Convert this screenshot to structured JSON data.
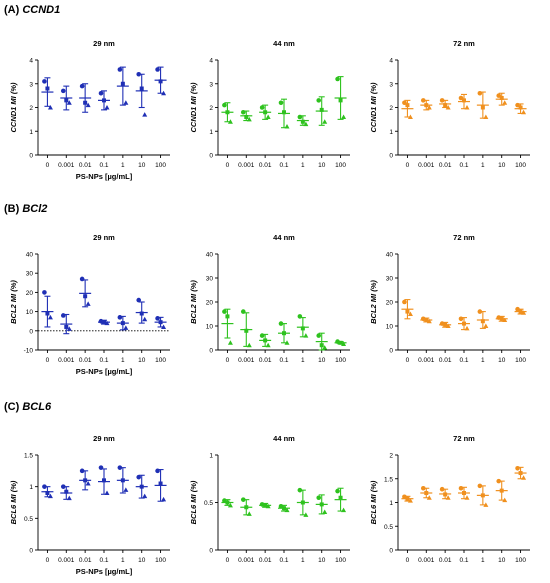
{
  "sections": [
    {
      "letter": "(A)",
      "gene": "CCND1"
    },
    {
      "letter": "(B)",
      "gene": "BCl2"
    },
    {
      "letter": "(C)",
      "gene": "BCL6"
    }
  ],
  "colors": {
    "nm29": "#1f2fb5",
    "nm44": "#2ec21e",
    "nm72": "#f0901e",
    "axis": "#000000"
  },
  "chart_data": [
    {
      "type": "scatter",
      "title": "29 nm",
      "ylabel": "CCND1 MI (%)",
      "xlabel": "PS-NPs [µg/mL]",
      "categories": [
        "0",
        "0.001",
        "0.01",
        "0.1",
        "1",
        "10",
        "100"
      ],
      "ylim": [
        0,
        4
      ],
      "yticks": [
        0,
        1,
        2,
        3,
        4
      ],
      "color": "#1f2fb5",
      "series": [
        {
          "mean": [
            2.65,
            2.4,
            2.4,
            2.3,
            2.9,
            2.7,
            3.15
          ],
          "sd": [
            0.6,
            0.5,
            0.6,
            0.4,
            0.8,
            0.7,
            0.55
          ],
          "points": [
            [
              3.1,
              2.8,
              2.0
            ],
            [
              2.7,
              2.3,
              2.2
            ],
            [
              2.9,
              2.2,
              2.1
            ],
            [
              2.6,
              2.3,
              2.0
            ],
            [
              3.6,
              3.0,
              2.2
            ],
            [
              3.4,
              2.8,
              1.7
            ],
            [
              3.6,
              3.1,
              2.6
            ]
          ]
        }
      ]
    },
    {
      "type": "scatter",
      "title": "44 nm",
      "ylabel": "CCND1 MI (%)",
      "xlabel": "",
      "categories": [
        "0",
        "0.001",
        "0.01",
        "0.1",
        "1",
        "10",
        "100"
      ],
      "ylim": [
        0,
        4
      ],
      "yticks": [
        0,
        1,
        2,
        3,
        4
      ],
      "color": "#2ec21e",
      "series": [
        {
          "mean": [
            1.8,
            1.65,
            1.8,
            1.75,
            1.45,
            1.85,
            2.4
          ],
          "sd": [
            0.4,
            0.2,
            0.3,
            0.6,
            0.2,
            0.6,
            0.9
          ],
          "points": [
            [
              2.1,
              1.8,
              1.4
            ],
            [
              1.8,
              1.6,
              1.5
            ],
            [
              2.0,
              1.8,
              1.6
            ],
            [
              2.2,
              1.8,
              1.2
            ],
            [
              1.6,
              1.4,
              1.3
            ],
            [
              2.3,
              1.9,
              1.4
            ],
            [
              3.2,
              2.3,
              1.6
            ]
          ]
        }
      ]
    },
    {
      "type": "scatter",
      "title": "72 nm",
      "ylabel": "CCND1 MI (%)",
      "xlabel": "",
      "categories": [
        "0",
        "0.001",
        "0.01",
        "0.1",
        "1",
        "10",
        "100"
      ],
      "ylim": [
        0,
        4
      ],
      "yticks": [
        0,
        1,
        2,
        3,
        4
      ],
      "color": "#f0901e",
      "series": [
        {
          "mean": [
            1.95,
            2.1,
            2.15,
            2.25,
            2.1,
            2.35,
            1.95
          ],
          "sd": [
            0.35,
            0.2,
            0.15,
            0.3,
            0.55,
            0.25,
            0.2
          ],
          "points": [
            [
              2.2,
              2.1,
              1.6
            ],
            [
              2.3,
              2.1,
              2.0
            ],
            [
              2.3,
              2.1,
              2.0
            ],
            [
              2.4,
              2.3,
              2.0
            ],
            [
              2.6,
              2.0,
              1.6
            ],
            [
              2.5,
              2.4,
              2.2
            ],
            [
              2.1,
              2.0,
              1.8
            ]
          ]
        }
      ]
    },
    {
      "type": "scatter",
      "title": "29 nm",
      "ylabel": "BCL2 MI (%)",
      "xlabel": "PS-NPs [µg/mL]",
      "categories": [
        "0",
        "0.001",
        "0.01",
        "0.1",
        "1",
        "10",
        "100"
      ],
      "ylim": [
        -10,
        40
      ],
      "yticks": [
        -10,
        0,
        10,
        20,
        30,
        40
      ],
      "color": "#1f2fb5",
      "series": [
        {
          "mean": [
            10,
            3.5,
            19.5,
            4.5,
            4,
            9.5,
            4.5
          ],
          "sd": [
            8,
            5,
            7,
            1,
            3.5,
            5.5,
            2.5
          ],
          "points": [
            [
              20,
              9,
              7
            ],
            [
              8,
              2,
              1
            ],
            [
              27,
              18,
              14
            ],
            [
              5,
              4.5,
              4
            ],
            [
              7,
              4,
              1.5
            ],
            [
              16,
              9,
              6
            ],
            [
              6.5,
              4.5,
              2
            ]
          ]
        }
      ]
    },
    {
      "type": "scatter",
      "title": "44 nm",
      "ylabel": "BCL2 MI (%)",
      "xlabel": "",
      "categories": [
        "0",
        "0.001",
        "0.01",
        "0.1",
        "1",
        "10",
        "100"
      ],
      "ylim": [
        0,
        40
      ],
      "yticks": [
        0,
        10,
        20,
        30,
        40
      ],
      "color": "#2ec21e",
      "series": [
        {
          "mean": [
            11,
            8.5,
            4,
            7,
            9.5,
            3.5,
            3
          ],
          "sd": [
            6,
            7,
            2.5,
            4,
            4,
            3.5,
            0.5
          ],
          "points": [
            [
              16,
              14,
              3
            ],
            [
              16,
              8,
              2
            ],
            [
              6,
              4,
              2
            ],
            [
              11,
              7,
              3
            ],
            [
              14,
              9,
              6
            ],
            [
              6,
              2,
              1
            ],
            [
              3.5,
              3,
              2.5
            ]
          ]
        }
      ]
    },
    {
      "type": "scatter",
      "title": "72 nm",
      "ylabel": "BCL2 MI (%)",
      "xlabel": "",
      "categories": [
        "0",
        "0.001",
        "0.01",
        "0.1",
        "1",
        "10",
        "100"
      ],
      "ylim": [
        0,
        40
      ],
      "yticks": [
        0,
        10,
        20,
        30,
        40
      ],
      "color": "#f0901e",
      "series": [
        {
          "mean": [
            17,
            12.5,
            10.5,
            11,
            12.5,
            13,
            16
          ],
          "sd": [
            4,
            0.8,
            1,
            2.5,
            3.5,
            1,
            1
          ],
          "points": [
            [
              20,
              16,
              15
            ],
            [
              13,
              12.5,
              12
            ],
            [
              11,
              10.5,
              10
            ],
            [
              13,
              11,
              9
            ],
            [
              16,
              12,
              10
            ],
            [
              13.5,
              13,
              12.5
            ],
            [
              17,
              16,
              15.5
            ]
          ]
        }
      ]
    },
    {
      "type": "scatter",
      "title": "29 nm",
      "ylabel": "BCL6 MI (%)",
      "xlabel": "PS-NPs [µg/mL]",
      "categories": [
        "0",
        "0.001",
        "0.01",
        "0.1",
        "1",
        "10",
        "100"
      ],
      "ylim": [
        0,
        1.5
      ],
      "yticks": [
        0,
        0.5,
        1.0,
        1.5
      ],
      "color": "#1f2fb5",
      "series": [
        {
          "mean": [
            0.92,
            0.9,
            1.1,
            1.08,
            1.1,
            1.0,
            1.02
          ],
          "sd": [
            0.08,
            0.1,
            0.15,
            0.2,
            0.2,
            0.18,
            0.25
          ],
          "points": [
            [
              1.0,
              0.9,
              0.85
            ],
            [
              1.0,
              0.92,
              0.82
            ],
            [
              1.25,
              1.1,
              1.05
            ],
            [
              1.3,
              1.1,
              0.9
            ],
            [
              1.3,
              1.1,
              0.95
            ],
            [
              1.15,
              1.0,
              0.85
            ],
            [
              1.25,
              1.05,
              0.8
            ]
          ]
        }
      ]
    },
    {
      "type": "scatter",
      "title": "44 nm",
      "ylabel": "BCL6 MI (%)",
      "xlabel": "",
      "categories": [
        "0",
        "0.001",
        "0.01",
        "0.1",
        "1",
        "10",
        "100"
      ],
      "ylim": [
        0,
        1.0
      ],
      "yticks": [
        0,
        0.5,
        1.0
      ],
      "color": "#2ec21e",
      "series": [
        {
          "mean": [
            0.5,
            0.45,
            0.47,
            0.44,
            0.5,
            0.48,
            0.53
          ],
          "sd": [
            0.03,
            0.08,
            0.02,
            0.03,
            0.13,
            0.1,
            0.12
          ],
          "points": [
            [
              0.52,
              0.5,
              0.47
            ],
            [
              0.53,
              0.45,
              0.38
            ],
            [
              0.48,
              0.47,
              0.46
            ],
            [
              0.46,
              0.44,
              0.42
            ],
            [
              0.63,
              0.5,
              0.37
            ],
            [
              0.55,
              0.48,
              0.4
            ],
            [
              0.62,
              0.55,
              0.42
            ]
          ]
        }
      ]
    },
    {
      "type": "scatter",
      "title": "72 nm",
      "ylabel": "BCL6 MI (%)",
      "xlabel": "",
      "categories": [
        "0",
        "0.001",
        "0.01",
        "0.1",
        "1",
        "10",
        "100"
      ],
      "ylim": [
        0,
        2.0
      ],
      "yticks": [
        0,
        0.5,
        1.0,
        1.5,
        2.0
      ],
      "color": "#f0901e",
      "series": [
        {
          "mean": [
            1.08,
            1.2,
            1.18,
            1.2,
            1.15,
            1.25,
            1.62
          ],
          "sd": [
            0.05,
            0.1,
            0.1,
            0.12,
            0.2,
            0.2,
            0.12
          ],
          "points": [
            [
              1.12,
              1.08,
              1.04
            ],
            [
              1.3,
              1.2,
              1.1
            ],
            [
              1.28,
              1.17,
              1.1
            ],
            [
              1.3,
              1.2,
              1.1
            ],
            [
              1.35,
              1.15,
              0.95
            ],
            [
              1.45,
              1.25,
              1.05
            ],
            [
              1.72,
              1.62,
              1.52
            ]
          ]
        }
      ]
    }
  ]
}
